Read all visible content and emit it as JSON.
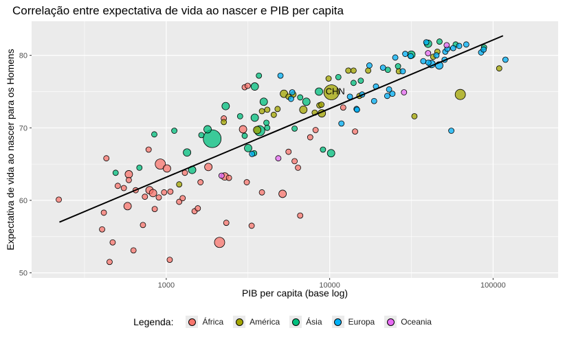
{
  "chart_data": {
    "type": "scatter",
    "title": "Correlação entre expectativa de vida ao nascer e PIB per capita",
    "xlabel": "PIB per capita (base log)",
    "ylabel": "Expectativa de vida ao nascer para os Homens",
    "x_scale": "log10",
    "xlim": [
      150,
      250000
    ],
    "ylim": [
      49.3,
      84.7
    ],
    "x_ticks": [
      1000,
      10000,
      100000
    ],
    "x_tick_labels": [
      "1000",
      "10000",
      "100000"
    ],
    "y_ticks": [
      50,
      60,
      70,
      80
    ],
    "y_tick_labels": [
      "50",
      "60",
      "70",
      "80"
    ],
    "grid": true,
    "legend_title": "Legenda:",
    "legend_position": "bottom",
    "groups": [
      {
        "name": "África",
        "color": "#F8766D"
      },
      {
        "name": "América",
        "color": "#A3A500"
      },
      {
        "name": "Ásia",
        "color": "#00BF7D"
      },
      {
        "name": "Europa",
        "color": "#00B0F6"
      },
      {
        "name": "Oceania",
        "color": "#E76BF3"
      }
    ],
    "trend_line": {
      "x": [
        222,
        115000
      ],
      "y": [
        57.0,
        82.7
      ]
    },
    "annotations": [
      {
        "text": "CHN",
        "x": 10500,
        "y": 75.0
      }
    ],
    "points": [
      {
        "x": 220,
        "y": 60.1,
        "g": "África",
        "s": 1
      },
      {
        "x": 415,
        "y": 58.3,
        "g": "África",
        "s": 1
      },
      {
        "x": 430,
        "y": 65.8,
        "g": "África",
        "s": 1
      },
      {
        "x": 450,
        "y": 51.5,
        "g": "África",
        "s": 1
      },
      {
        "x": 470,
        "y": 54.2,
        "g": "África",
        "s": 1
      },
      {
        "x": 405,
        "y": 56.0,
        "g": "África",
        "s": 1
      },
      {
        "x": 505,
        "y": 62.0,
        "g": "África",
        "s": 1
      },
      {
        "x": 550,
        "y": 61.7,
        "g": "África",
        "s": 1
      },
      {
        "x": 580,
        "y": 59.2,
        "g": "África",
        "s": 2
      },
      {
        "x": 590,
        "y": 63.6,
        "g": "África",
        "s": 2
      },
      {
        "x": 590,
        "y": 62.8,
        "g": "África",
        "s": 1
      },
      {
        "x": 630,
        "y": 53.1,
        "g": "África",
        "s": 1
      },
      {
        "x": 650,
        "y": 61.4,
        "g": "África",
        "s": 1
      },
      {
        "x": 720,
        "y": 56.6,
        "g": "África",
        "s": 1
      },
      {
        "x": 740,
        "y": 60.5,
        "g": "África",
        "s": 1
      },
      {
        "x": 780,
        "y": 67.0,
        "g": "África",
        "s": 1
      },
      {
        "x": 790,
        "y": 61.4,
        "g": "África",
        "s": 2
      },
      {
        "x": 830,
        "y": 61.0,
        "g": "África",
        "s": 2
      },
      {
        "x": 850,
        "y": 58.8,
        "g": "África",
        "s": 1
      },
      {
        "x": 900,
        "y": 60.4,
        "g": "África",
        "s": 1
      },
      {
        "x": 920,
        "y": 65.0,
        "g": "África",
        "s": 3
      },
      {
        "x": 970,
        "y": 61.1,
        "g": "África",
        "s": 1
      },
      {
        "x": 1010,
        "y": 64.4,
        "g": "África",
        "s": 2
      },
      {
        "x": 1050,
        "y": 51.8,
        "g": "África",
        "s": 1
      },
      {
        "x": 1060,
        "y": 61.2,
        "g": "África",
        "s": 1
      },
      {
        "x": 1200,
        "y": 59.8,
        "g": "África",
        "s": 1
      },
      {
        "x": 1260,
        "y": 60.3,
        "g": "África",
        "s": 1
      },
      {
        "x": 1300,
        "y": 63.8,
        "g": "África",
        "s": 1
      },
      {
        "x": 1490,
        "y": 58.5,
        "g": "África",
        "s": 1
      },
      {
        "x": 1560,
        "y": 58.9,
        "g": "África",
        "s": 1
      },
      {
        "x": 1620,
        "y": 62.5,
        "g": "África",
        "s": 1
      },
      {
        "x": 1810,
        "y": 64.6,
        "g": "África",
        "s": 2
      },
      {
        "x": 2120,
        "y": 54.2,
        "g": "África",
        "s": 3
      },
      {
        "x": 2280,
        "y": 63.3,
        "g": "África",
        "s": 2
      },
      {
        "x": 2330,
        "y": 56.9,
        "g": "África",
        "s": 1
      },
      {
        "x": 2420,
        "y": 63.1,
        "g": "África",
        "s": 1
      },
      {
        "x": 2250,
        "y": 71.3,
        "g": "África",
        "s": 1
      },
      {
        "x": 2950,
        "y": 69.8,
        "g": "África",
        "s": 2
      },
      {
        "x": 3020,
        "y": 75.6,
        "g": "África",
        "s": 1
      },
      {
        "x": 3110,
        "y": 62.5,
        "g": "África",
        "s": 1
      },
      {
        "x": 3150,
        "y": 75.8,
        "g": "África",
        "s": 1
      },
      {
        "x": 3330,
        "y": 56.5,
        "g": "África",
        "s": 1
      },
      {
        "x": 3850,
        "y": 61.1,
        "g": "África",
        "s": 1
      },
      {
        "x": 5150,
        "y": 60.9,
        "g": "África",
        "s": 2
      },
      {
        "x": 5600,
        "y": 66.7,
        "g": "África",
        "s": 1
      },
      {
        "x": 6100,
        "y": 65.4,
        "g": "África",
        "s": 1
      },
      {
        "x": 6400,
        "y": 64.5,
        "g": "África",
        "s": 1
      },
      {
        "x": 6600,
        "y": 57.9,
        "g": "África",
        "s": 1
      },
      {
        "x": 7600,
        "y": 68.7,
        "g": "África",
        "s": 1
      },
      {
        "x": 8200,
        "y": 69.7,
        "g": "África",
        "s": 1
      },
      {
        "x": 12100,
        "y": 72.8,
        "g": "África",
        "s": 1
      },
      {
        "x": 14300,
        "y": 69.5,
        "g": "África",
        "s": 1
      },
      {
        "x": 1200,
        "y": 62.2,
        "g": "América",
        "s": 1
      },
      {
        "x": 2250,
        "y": 70.8,
        "g": "América",
        "s": 1
      },
      {
        "x": 3600,
        "y": 69.7,
        "g": "América",
        "s": 2
      },
      {
        "x": 3850,
        "y": 72.3,
        "g": "América",
        "s": 1
      },
      {
        "x": 4150,
        "y": 72.5,
        "g": "América",
        "s": 1
      },
      {
        "x": 4550,
        "y": 71.8,
        "g": "América",
        "s": 1
      },
      {
        "x": 4800,
        "y": 72.6,
        "g": "América",
        "s": 1
      },
      {
        "x": 5250,
        "y": 74.7,
        "g": "América",
        "s": 2
      },
      {
        "x": 5600,
        "y": 74.3,
        "g": "América",
        "s": 1
      },
      {
        "x": 6000,
        "y": 74.6,
        "g": "América",
        "s": 1
      },
      {
        "x": 6900,
        "y": 72.5,
        "g": "América",
        "s": 2
      },
      {
        "x": 8650,
        "y": 73.1,
        "g": "América",
        "s": 1
      },
      {
        "x": 8100,
        "y": 72.1,
        "g": "América",
        "s": 1
      },
      {
        "x": 8900,
        "y": 73.2,
        "g": "América",
        "s": 1
      },
      {
        "x": 8950,
        "y": 72.0,
        "g": "América",
        "s": 2
      },
      {
        "x": 9850,
        "y": 76.8,
        "g": "América",
        "s": 1
      },
      {
        "x": 10250,
        "y": 74.9,
        "g": "América",
        "s": 4
      },
      {
        "x": 13000,
        "y": 77.9,
        "g": "América",
        "s": 1
      },
      {
        "x": 14000,
        "y": 77.9,
        "g": "América",
        "s": 1
      },
      {
        "x": 15200,
        "y": 74.4,
        "g": "América",
        "s": 1
      },
      {
        "x": 17200,
        "y": 77.9,
        "g": "América",
        "s": 1
      },
      {
        "x": 26500,
        "y": 77.8,
        "g": "América",
        "s": 1
      },
      {
        "x": 33000,
        "y": 71.6,
        "g": "América",
        "s": 1
      },
      {
        "x": 43000,
        "y": 79.8,
        "g": "América",
        "s": 1
      },
      {
        "x": 45600,
        "y": 80.5,
        "g": "América",
        "s": 1
      },
      {
        "x": 63000,
        "y": 74.6,
        "g": "América",
        "s": 3
      },
      {
        "x": 109000,
        "y": 78.2,
        "g": "América",
        "s": 1
      },
      {
        "x": 685,
        "y": 64.5,
        "g": "Ásia",
        "s": 1
      },
      {
        "x": 490,
        "y": 63.8,
        "g": "Ásia",
        "s": 1
      },
      {
        "x": 845,
        "y": 69.1,
        "g": "Ásia",
        "s": 1
      },
      {
        "x": 1120,
        "y": 69.6,
        "g": "Ásia",
        "s": 1
      },
      {
        "x": 1340,
        "y": 66.6,
        "g": "Ásia",
        "s": 2
      },
      {
        "x": 1440,
        "y": 64.2,
        "g": "Ásia",
        "s": 2
      },
      {
        "x": 1640,
        "y": 69.0,
        "g": "Ásia",
        "s": 1
      },
      {
        "x": 1790,
        "y": 69.8,
        "g": "Ásia",
        "s": 2
      },
      {
        "x": 1910,
        "y": 68.5,
        "g": "Ásia",
        "s": 5
      },
      {
        "x": 2310,
        "y": 73.0,
        "g": "Ásia",
        "s": 2
      },
      {
        "x": 2830,
        "y": 71.6,
        "g": "Ásia",
        "s": 1
      },
      {
        "x": 3020,
        "y": 68.9,
        "g": "Ásia",
        "s": 1
      },
      {
        "x": 3170,
        "y": 67.2,
        "g": "Ásia",
        "s": 2
      },
      {
        "x": 3480,
        "y": 75.7,
        "g": "Ásia",
        "s": 2
      },
      {
        "x": 3480,
        "y": 71.4,
        "g": "Ásia",
        "s": 2
      },
      {
        "x": 3450,
        "y": 66.5,
        "g": "Ásia",
        "s": 1
      },
      {
        "x": 3690,
        "y": 77.2,
        "g": "Ásia",
        "s": 1
      },
      {
        "x": 3730,
        "y": 69.6,
        "g": "Ásia",
        "s": 3
      },
      {
        "x": 3950,
        "y": 73.6,
        "g": "Ásia",
        "s": 2
      },
      {
        "x": 4100,
        "y": 70.7,
        "g": "Ásia",
        "s": 1
      },
      {
        "x": 4150,
        "y": 70.0,
        "g": "Ásia",
        "s": 1
      },
      {
        "x": 6100,
        "y": 69.9,
        "g": "Ásia",
        "s": 1
      },
      {
        "x": 6600,
        "y": 74.2,
        "g": "Ásia",
        "s": 1
      },
      {
        "x": 7200,
        "y": 73.6,
        "g": "Ásia",
        "s": 2
      },
      {
        "x": 8600,
        "y": 75.0,
        "g": "Ásia",
        "s": 2
      },
      {
        "x": 9100,
        "y": 67.0,
        "g": "Ásia",
        "s": 1
      },
      {
        "x": 10200,
        "y": 66.5,
        "g": "Ásia",
        "s": 2
      },
      {
        "x": 11300,
        "y": 77.0,
        "g": "Ásia",
        "s": 1
      },
      {
        "x": 14000,
        "y": 76.2,
        "g": "Ásia",
        "s": 1
      },
      {
        "x": 15500,
        "y": 76.5,
        "g": "Ásia",
        "s": 1
      },
      {
        "x": 22700,
        "y": 78.0,
        "g": "Ásia",
        "s": 1
      },
      {
        "x": 26200,
        "y": 78.5,
        "g": "Ásia",
        "s": 1
      },
      {
        "x": 31600,
        "y": 80.1,
        "g": "Ásia",
        "s": 2
      },
      {
        "x": 40000,
        "y": 81.6,
        "g": "Ásia",
        "s": 2
      },
      {
        "x": 47000,
        "y": 81.9,
        "g": "Ásia",
        "s": 1
      },
      {
        "x": 59000,
        "y": 81.5,
        "g": "Ásia",
        "s": 1
      },
      {
        "x": 88000,
        "y": 81.1,
        "g": "Ásia",
        "s": 1
      },
      {
        "x": 3350,
        "y": 66.4,
        "g": "Europa",
        "s": 1
      },
      {
        "x": 5000,
        "y": 77.2,
        "g": "Europa",
        "s": 1
      },
      {
        "x": 5800,
        "y": 74.0,
        "g": "Europa",
        "s": 1
      },
      {
        "x": 5900,
        "y": 74.9,
        "g": "Europa",
        "s": 1
      },
      {
        "x": 11800,
        "y": 70.6,
        "g": "Europa",
        "s": 1
      },
      {
        "x": 13300,
        "y": 74.3,
        "g": "Europa",
        "s": 1
      },
      {
        "x": 14600,
        "y": 72.6,
        "g": "Europa",
        "s": 1
      },
      {
        "x": 14700,
        "y": 72.5,
        "g": "Europa",
        "s": 1
      },
      {
        "x": 15800,
        "y": 74.6,
        "g": "Europa",
        "s": 1
      },
      {
        "x": 17500,
        "y": 78.6,
        "g": "Europa",
        "s": 1
      },
      {
        "x": 18700,
        "y": 73.7,
        "g": "Europa",
        "s": 1
      },
      {
        "x": 19200,
        "y": 75.7,
        "g": "Europa",
        "s": 1
      },
      {
        "x": 21200,
        "y": 78.3,
        "g": "Europa",
        "s": 1
      },
      {
        "x": 22500,
        "y": 74.4,
        "g": "Europa",
        "s": 1
      },
      {
        "x": 23100,
        "y": 75.3,
        "g": "Europa",
        "s": 1
      },
      {
        "x": 24200,
        "y": 74.7,
        "g": "Europa",
        "s": 1
      },
      {
        "x": 25200,
        "y": 79.7,
        "g": "Europa",
        "s": 1
      },
      {
        "x": 28000,
        "y": 77.8,
        "g": "Europa",
        "s": 1
      },
      {
        "x": 29000,
        "y": 80.2,
        "g": "Europa",
        "s": 1
      },
      {
        "x": 31300,
        "y": 79.9,
        "g": "Europa",
        "s": 1
      },
      {
        "x": 37400,
        "y": 79.2,
        "g": "Europa",
        "s": 1
      },
      {
        "x": 39000,
        "y": 81.8,
        "g": "Europa",
        "s": 1
      },
      {
        "x": 40200,
        "y": 79.0,
        "g": "Europa",
        "s": 1
      },
      {
        "x": 42000,
        "y": 78.8,
        "g": "Europa",
        "s": 2
      },
      {
        "x": 45000,
        "y": 80.0,
        "g": "Europa",
        "s": 1
      },
      {
        "x": 46800,
        "y": 78.6,
        "g": "Europa",
        "s": 2
      },
      {
        "x": 50500,
        "y": 79.4,
        "g": "Europa",
        "s": 1
      },
      {
        "x": 51000,
        "y": 80.5,
        "g": "Europa",
        "s": 1
      },
      {
        "x": 52500,
        "y": 80.9,
        "g": "Europa",
        "s": 1
      },
      {
        "x": 55500,
        "y": 69.6,
        "g": "Europa",
        "s": 1
      },
      {
        "x": 57000,
        "y": 81.0,
        "g": "Europa",
        "s": 1
      },
      {
        "x": 62000,
        "y": 81.3,
        "g": "Europa",
        "s": 1
      },
      {
        "x": 68500,
        "y": 81.5,
        "g": "Europa",
        "s": 1
      },
      {
        "x": 84500,
        "y": 80.4,
        "g": "Europa",
        "s": 1
      },
      {
        "x": 87500,
        "y": 80.8,
        "g": "Europa",
        "s": 1
      },
      {
        "x": 119000,
        "y": 79.4,
        "g": "Europa",
        "s": 1
      },
      {
        "x": 2180,
        "y": 63.4,
        "g": "Oceania",
        "s": 1
      },
      {
        "x": 4850,
        "y": 65.8,
        "g": "Oceania",
        "s": 1
      },
      {
        "x": 28500,
        "y": 74.9,
        "g": "Oceania",
        "s": 1
      },
      {
        "x": 40000,
        "y": 80.3,
        "g": "Oceania",
        "s": 1
      },
      {
        "x": 52000,
        "y": 81.4,
        "g": "Oceania",
        "s": 1
      }
    ]
  }
}
